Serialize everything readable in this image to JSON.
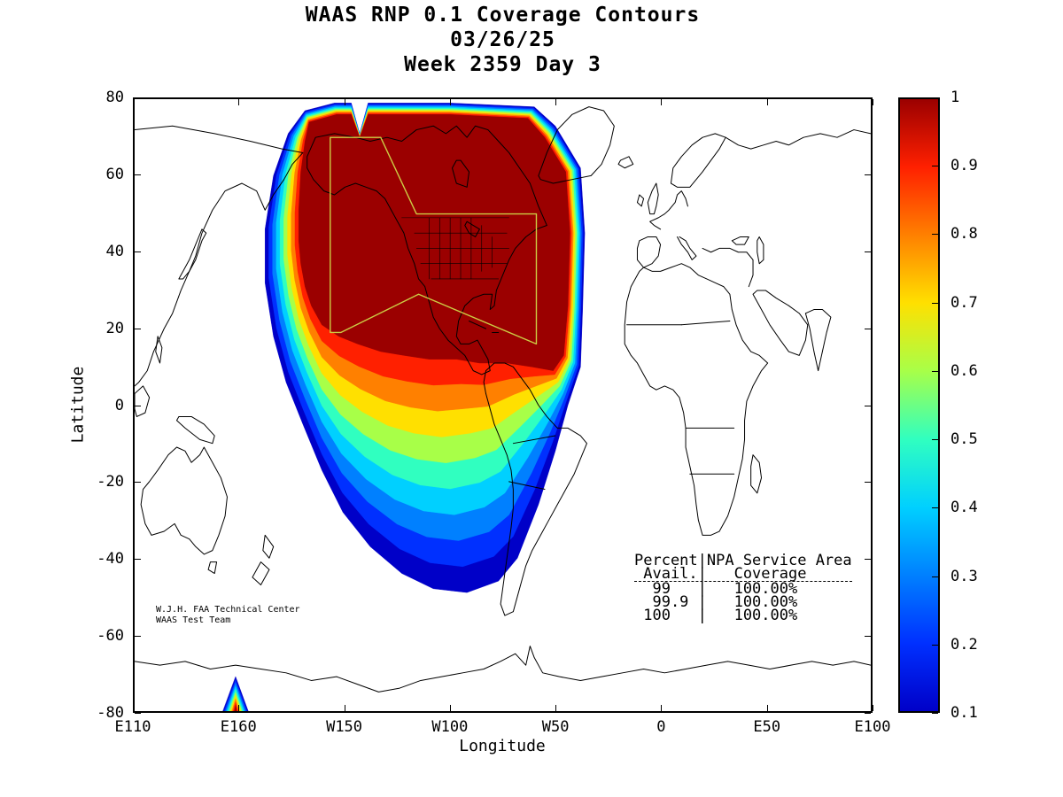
{
  "title": {
    "line1": "WAAS RNP 0.1 Coverage Contours",
    "line2": "03/26/25",
    "line3": "Week 2359 Day 3"
  },
  "axes": {
    "xlabel": "Longitude",
    "ylabel": "Latitude",
    "x_ticks": [
      {
        "lon": 110,
        "label": "E110"
      },
      {
        "lon": 160,
        "label": "E160"
      },
      {
        "lon": 210,
        "label": "W150"
      },
      {
        "lon": 260,
        "label": "W100"
      },
      {
        "lon": 310,
        "label": "W50"
      },
      {
        "lon": 360,
        "label": "0"
      },
      {
        "lon": 410,
        "label": "E50"
      },
      {
        "lon": 460,
        "label": "E100"
      }
    ],
    "y_ticks": [
      {
        "lat": 80,
        "label": "80"
      },
      {
        "lat": 60,
        "label": "60"
      },
      {
        "lat": 40,
        "label": "40"
      },
      {
        "lat": 20,
        "label": "20"
      },
      {
        "lat": 0,
        "label": "0"
      },
      {
        "lat": -20,
        "label": "-20"
      },
      {
        "lat": -40,
        "label": "-40"
      },
      {
        "lat": -60,
        "label": "-60"
      },
      {
        "lat": -80,
        "label": "-80"
      }
    ]
  },
  "colorbar": {
    "min": 0.1,
    "max": 1,
    "ticks": [
      {
        "v": 1,
        "label": "1"
      },
      {
        "v": 0.9,
        "label": "0.9"
      },
      {
        "v": 0.8,
        "label": "0.8"
      },
      {
        "v": 0.7,
        "label": "0.7"
      },
      {
        "v": 0.6,
        "label": "0.6"
      },
      {
        "v": 0.5,
        "label": "0.5"
      },
      {
        "v": 0.4,
        "label": "0.4"
      },
      {
        "v": 0.3,
        "label": "0.3"
      },
      {
        "v": 0.2,
        "label": "0.2"
      },
      {
        "v": 0.1,
        "label": "0.1"
      }
    ]
  },
  "annotations": {
    "credit_line1": "W.J.H. FAA Technical Center",
    "credit_line2": "WAAS Test Team",
    "table_lines": [
      "Percent|NPA Service Area",
      " Avail.|   Coverage",
      "  99   |   100.00%",
      "  99.9 |   100.00%",
      " 100   |   100.00%"
    ]
  },
  "chart_data": {
    "type": "contour",
    "title": "WAAS RNP 0.1 Coverage Contours",
    "date": "03/26/25",
    "week": "2359",
    "day": "3",
    "xlabel": "Longitude",
    "ylabel": "Latitude",
    "x_axis_span_deg": [
      110,
      460
    ],
    "y_axis_span_deg": [
      -80,
      80
    ],
    "grid": false,
    "levels": [
      0.1,
      0.2,
      0.3,
      0.4,
      0.5,
      0.6,
      0.7,
      0.8,
      0.9,
      1.0
    ],
    "level_colors": [
      "#0000C8",
      "#0030FF",
      "#0080FF",
      "#00D0FF",
      "#30FFC0",
      "#A8FF48",
      "#FFE000",
      "#FF8000",
      "#FF2000",
      "#9B0000"
    ],
    "availability_table": [
      {
        "percent_avail": "99",
        "npa_coverage": "100.00%"
      },
      {
        "percent_avail": "99.9",
        "npa_coverage": "100.00%"
      },
      {
        "percent_avail": "100",
        "npa_coverage": "100.00%"
      }
    ],
    "service_area_color": "#CCCC44",
    "service_area_boundary": [
      [
        203,
        19
      ],
      [
        203,
        70
      ],
      [
        227,
        70
      ],
      [
        244,
        50
      ],
      [
        301,
        50
      ],
      [
        301,
        16
      ],
      [
        245,
        29
      ],
      [
        208,
        19
      ]
    ],
    "coverage_outer_boundary": [
      [
        191,
        77
      ],
      [
        205,
        79
      ],
      [
        213,
        79
      ],
      [
        217,
        71
      ],
      [
        221,
        79
      ],
      [
        260,
        79
      ],
      [
        300,
        78
      ],
      [
        310,
        73
      ],
      [
        322,
        62
      ],
      [
        324,
        45
      ],
      [
        323,
        25
      ],
      [
        322,
        10
      ],
      [
        316,
        0
      ],
      [
        310,
        -12
      ],
      [
        302,
        -26
      ],
      [
        292,
        -40
      ],
      [
        283,
        -46
      ],
      [
        268,
        -49
      ],
      [
        252,
        -48
      ],
      [
        237,
        -44
      ],
      [
        222,
        -37
      ],
      [
        209,
        -28
      ],
      [
        199,
        -17
      ],
      [
        190,
        -5
      ],
      [
        182,
        6
      ],
      [
        176,
        18
      ],
      [
        172,
        32
      ],
      [
        172,
        46
      ],
      [
        176,
        60
      ],
      [
        183,
        71
      ]
    ],
    "coverage_core_boundary": [
      [
        193,
        74
      ],
      [
        206,
        76
      ],
      [
        213,
        76
      ],
      [
        217,
        70
      ],
      [
        221,
        76
      ],
      [
        260,
        76
      ],
      [
        297,
        75
      ],
      [
        305,
        70
      ],
      [
        315,
        61
      ],
      [
        317,
        45
      ],
      [
        316,
        26
      ],
      [
        314,
        13
      ],
      [
        309,
        9
      ],
      [
        299,
        10
      ],
      [
        287,
        11
      ],
      [
        274,
        11
      ],
      [
        263,
        12
      ],
      [
        250,
        12
      ],
      [
        238,
        13
      ],
      [
        227,
        14
      ],
      [
        216,
        16
      ],
      [
        207,
        18
      ],
      [
        199,
        21
      ],
      [
        194,
        26
      ],
      [
        191,
        31
      ],
      [
        189,
        37
      ],
      [
        188,
        43
      ],
      [
        188,
        51
      ],
      [
        189,
        61
      ],
      [
        191,
        69
      ]
    ],
    "antarctic_feature_outer": [
      [
        152,
        -80
      ],
      [
        164,
        -80
      ],
      [
        158,
        -71
      ]
    ],
    "antarctic_feature_core": [
      [
        157.5,
        -80
      ],
      [
        158.5,
        -80
      ],
      [
        158,
        -78.5
      ]
    ]
  }
}
